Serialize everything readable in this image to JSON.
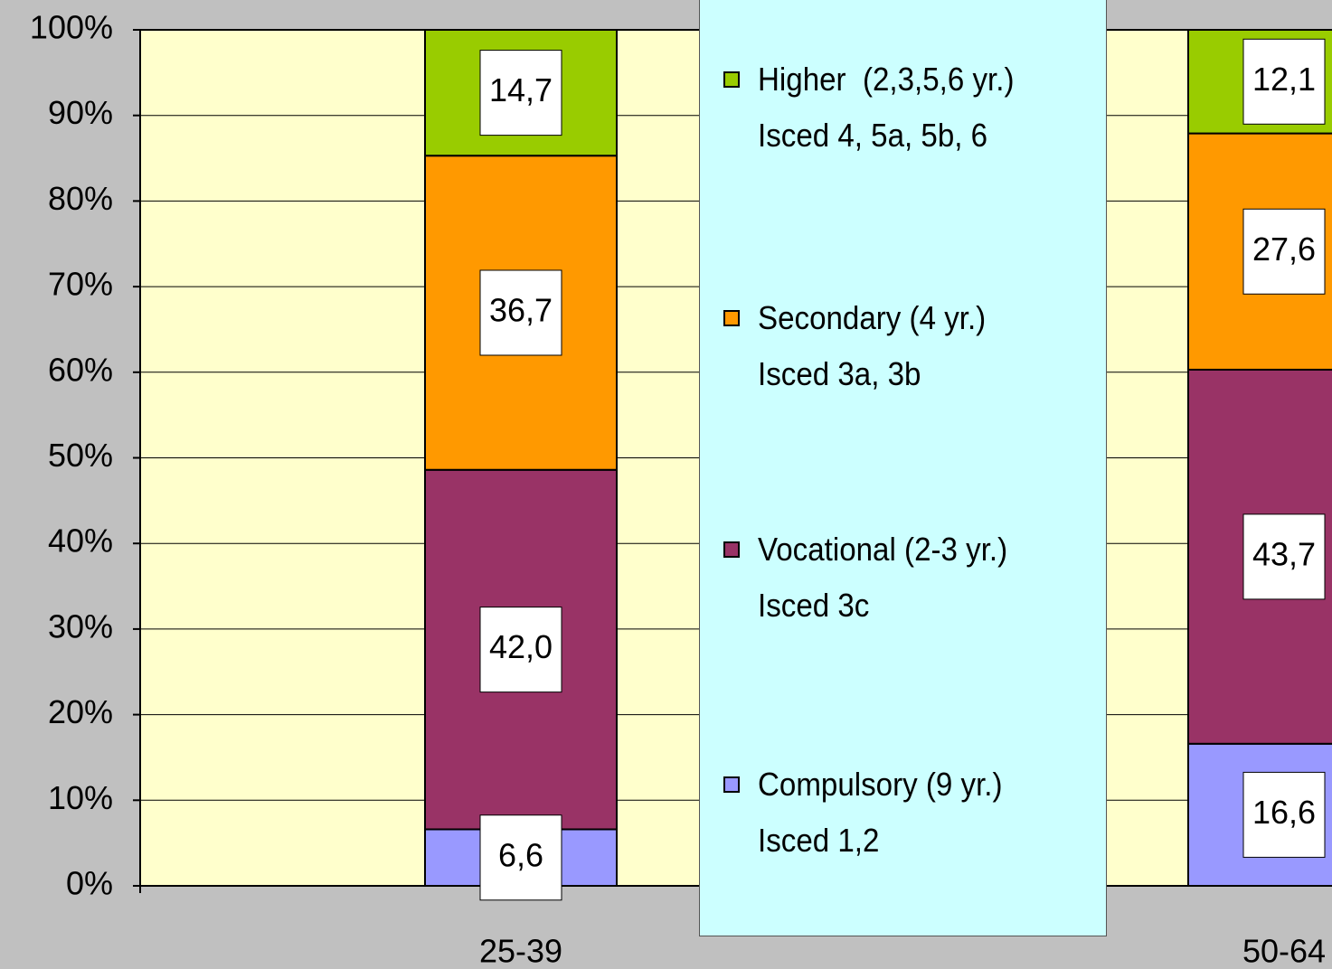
{
  "chart_data": {
    "type": "stacked_bar_100",
    "categories": [
      "25-39",
      "50-64"
    ],
    "series": [
      {
        "name": "Compulsory (9 yr.)\nIsced 1,2",
        "color": "#9999ff",
        "values": [
          6.6,
          16.6
        ],
        "value_labels": [
          "6,6",
          "16,6"
        ]
      },
      {
        "name": "Vocational (2-3 yr.)\nIsced 3c",
        "color": "#993366",
        "values": [
          42.0,
          43.7
        ],
        "value_labels": [
          "42,0",
          "43,7"
        ]
      },
      {
        "name": "Secondary (4 yr.)\nIsced 3a, 3b",
        "color": "#ff9900",
        "values": [
          36.7,
          27.6
        ],
        "value_labels": [
          "36,7",
          "27,6"
        ]
      },
      {
        "name": "Higher  (2,3,5,6 yr.)\nIsced 4, 5a, 5b, 6",
        "color": "#99cc00",
        "values": [
          14.7,
          12.1
        ],
        "value_labels": [
          "14,7",
          "12,1"
        ]
      }
    ],
    "ylim": [
      0,
      100
    ],
    "yticks": [
      {
        "value": 0,
        "label": "0%"
      },
      {
        "value": 10,
        "label": "10%"
      },
      {
        "value": 20,
        "label": "20%"
      },
      {
        "value": 30,
        "label": "30%"
      },
      {
        "value": 40,
        "label": "40%"
      },
      {
        "value": 50,
        "label": "50%"
      },
      {
        "value": 60,
        "label": "60%"
      },
      {
        "value": 70,
        "label": "70%"
      },
      {
        "value": 80,
        "label": "80%"
      },
      {
        "value": 90,
        "label": "90%"
      },
      {
        "value": 100,
        "label": "100%"
      }
    ],
    "grid": true,
    "plot_background": "#ffffcc"
  }
}
